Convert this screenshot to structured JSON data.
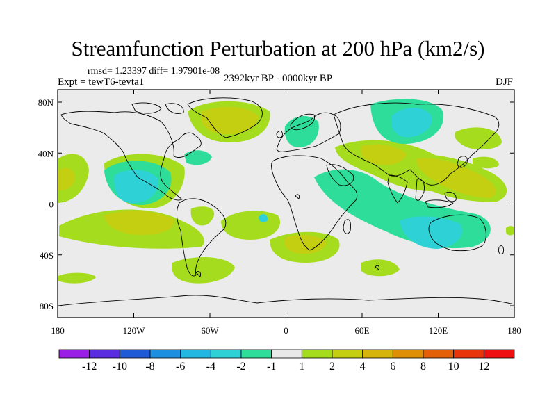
{
  "title": "Streamfunction Perturbation at 200 hPa (km2/s)",
  "stats": "rmsd= 1.23397 diff= 1.97901e-08",
  "experiment": "Expt = tewT6-tevta1",
  "period": "2392kyr BP - 0000kyr BP",
  "season": "DJF",
  "y_ticks": [
    "80N",
    "40N",
    "0",
    "40S",
    "80S"
  ],
  "x_ticks": [
    "180",
    "120W",
    "60W",
    "0",
    "60E",
    "120E",
    "180"
  ],
  "colorbar": {
    "labels": [
      "-12",
      "-10",
      "-8",
      "-6",
      "-4",
      "-2",
      "-1",
      "1",
      "2",
      "4",
      "6",
      "8",
      "10",
      "12"
    ],
    "colors": [
      "#9a1ee6",
      "#5a2de0",
      "#1f5ad6",
      "#1d8fe0",
      "#22b6e2",
      "#2ed1d6",
      "#2fdd9a",
      "#e9e9e9",
      "#a6dc1e",
      "#c4cf12",
      "#d6b40c",
      "#df8f06",
      "#e46008",
      "#e8350a",
      "#ee1010"
    ]
  },
  "chart_data": {
    "type": "heatmap",
    "title": "Streamfunction Perturbation at 200 hPa (km2/s)",
    "variable": "streamfunction perturbation",
    "units": "km2/s",
    "level": "200 hPa",
    "season": "DJF",
    "lon_range": [
      -180,
      180
    ],
    "lat_range": [
      -90,
      90
    ],
    "contour_levels": [
      -12,
      -10,
      -8,
      -6,
      -4,
      -2,
      -1,
      1,
      2,
      4,
      6,
      8,
      10,
      12
    ]
  }
}
